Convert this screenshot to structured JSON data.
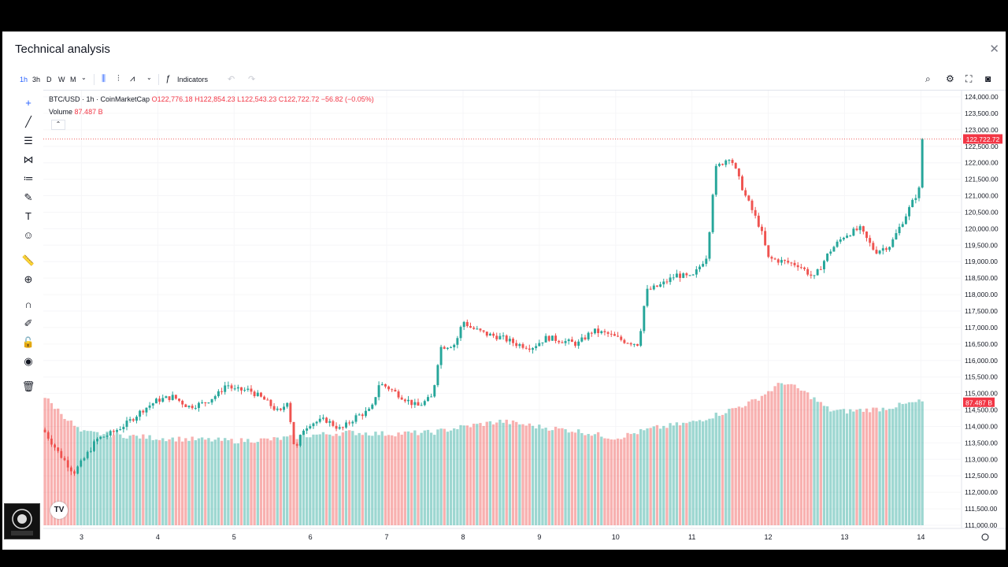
{
  "title": "Technical analysis",
  "close_icon": "close-icon",
  "timeframes": [
    "1h",
    "3h",
    "D",
    "W",
    "M"
  ],
  "active_timeframe": "1h",
  "indicators_label": "Indicators",
  "legend": {
    "symbol": "BTC/USD · 1h · CoinMarketCap",
    "ohlc": "O122,776.18 H122,854.23 L122,543.23 C122,722.72 −56.82 (−0.05%)",
    "volume_label": "Volume",
    "volume_value": "87.487 B"
  },
  "colors": {
    "up": "#26a69a",
    "down": "#ef5350",
    "accent": "#2962ff"
  },
  "chart_data": {
    "type": "candlestick",
    "symbol": "BTC/USD",
    "interval": "1h",
    "source": "CoinMarketCap",
    "x_ticks": [
      "3",
      "4",
      "5",
      "6",
      "7",
      "8",
      "9",
      "10",
      "11",
      "12",
      "13",
      "14"
    ],
    "y_ticks": [
      "124,000.00",
      "123,500.00",
      "123,000.00",
      "122,500.00",
      "122,000.00",
      "121,500.00",
      "121,000.00",
      "120,500.00",
      "120,000.00",
      "119,500.00",
      "119,000.00",
      "118,500.00",
      "118,000.00",
      "117,500.00",
      "117,000.00",
      "116,500.00",
      "116,000.00",
      "115,500.00",
      "115,000.00",
      "114,500.00",
      "114,000.00",
      "113,500.00",
      "113,000.00",
      "112,500.00",
      "112,000.00",
      "111,500.00",
      "111,000.00"
    ],
    "ylim": [
      111000,
      124000
    ],
    "last_price": "122,722.72",
    "last_price_value": 122722.72,
    "volume_badge": "87.487 B",
    "close_path": [
      [
        2.5,
        113900
      ],
      [
        2.7,
        113200
      ],
      [
        2.9,
        112600
      ],
      [
        3.0,
        112900
      ],
      [
        3.2,
        113600
      ],
      [
        3.4,
        113800
      ],
      [
        3.6,
        114100
      ],
      [
        3.8,
        114500
      ],
      [
        4.0,
        114800
      ],
      [
        4.2,
        114900
      ],
      [
        4.4,
        114600
      ],
      [
        4.6,
        114700
      ],
      [
        4.8,
        115000
      ],
      [
        4.9,
        115300
      ],
      [
        5.0,
        115100
      ],
      [
        5.2,
        115100
      ],
      [
        5.4,
        114800
      ],
      [
        5.6,
        114400
      ],
      [
        5.7,
        114800
      ],
      [
        5.8,
        113200
      ],
      [
        5.9,
        113900
      ],
      [
        6.0,
        114100
      ],
      [
        6.2,
        114200
      ],
      [
        6.4,
        113900
      ],
      [
        6.6,
        114300
      ],
      [
        6.8,
        114500
      ],
      [
        6.9,
        115300
      ],
      [
        7.0,
        115200
      ],
      [
        7.2,
        114900
      ],
      [
        7.4,
        114600
      ],
      [
        7.6,
        114900
      ],
      [
        7.7,
        116400
      ],
      [
        7.9,
        116500
      ],
      [
        8.0,
        117200
      ],
      [
        8.1,
        117000
      ],
      [
        8.3,
        116800
      ],
      [
        8.5,
        116700
      ],
      [
        8.7,
        116500
      ],
      [
        8.9,
        116400
      ],
      [
        9.1,
        116700
      ],
      [
        9.3,
        116600
      ],
      [
        9.5,
        116500
      ],
      [
        9.7,
        116900
      ],
      [
        9.9,
        116800
      ],
      [
        10.1,
        116600
      ],
      [
        10.3,
        116500
      ],
      [
        10.4,
        118100
      ],
      [
        10.6,
        118300
      ],
      [
        10.8,
        118600
      ],
      [
        11.0,
        118500
      ],
      [
        11.2,
        119200
      ],
      [
        11.3,
        121800
      ],
      [
        11.5,
        122200
      ],
      [
        11.7,
        121000
      ],
      [
        11.9,
        120000
      ],
      [
        12.0,
        119100
      ],
      [
        12.2,
        119000
      ],
      [
        12.4,
        118900
      ],
      [
        12.6,
        118500
      ],
      [
        12.8,
        119300
      ],
      [
        13.0,
        119800
      ],
      [
        13.2,
        120000
      ],
      [
        13.4,
        119300
      ],
      [
        13.6,
        119500
      ],
      [
        13.8,
        120400
      ],
      [
        14.0,
        121300
      ],
      [
        14.05,
        122722.72
      ]
    ],
    "volume": {
      "unit": "B",
      "last": 87.487,
      "path": [
        [
          2.5,
          92
        ],
        [
          3.0,
          66
        ],
        [
          4.0,
          62
        ],
        [
          5.0,
          60
        ],
        [
          5.5,
          61
        ],
        [
          6.0,
          64
        ],
        [
          6.5,
          66
        ],
        [
          7.0,
          65
        ],
        [
          7.6,
          66
        ],
        [
          8.0,
          70
        ],
        [
          8.5,
          74
        ],
        [
          9.0,
          70
        ],
        [
          9.5,
          67
        ],
        [
          10.0,
          62
        ],
        [
          10.5,
          69
        ],
        [
          11.0,
          73
        ],
        [
          11.4,
          80
        ],
        [
          11.8,
          88
        ],
        [
          12.2,
          102
        ],
        [
          12.5,
          94
        ],
        [
          12.8,
          82
        ],
        [
          13.0,
          81
        ],
        [
          13.5,
          83
        ],
        [
          14.0,
          88
        ],
        [
          14.1,
          87.487
        ]
      ]
    }
  }
}
